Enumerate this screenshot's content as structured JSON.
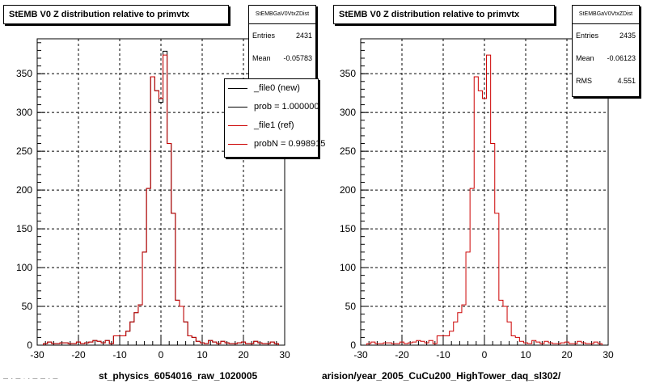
{
  "chart_data": [
    {
      "type": "histogram",
      "title": "StEMB V0 Z distribution relative to primvtx",
      "xlabel": "st_physics_6054016_raw_1020005",
      "xlim": [
        -30,
        30
      ],
      "ylim": [
        0,
        395
      ],
      "xticks": [
        -30,
        -20,
        -10,
        0,
        10,
        20,
        30
      ],
      "yticks": [
        0,
        50,
        100,
        150,
        200,
        250,
        300,
        350
      ],
      "grid": true,
      "stats": {
        "header": "StEMBGaV0VtxZDist",
        "rows": [
          {
            "label": "Entries",
            "value": "2431"
          },
          {
            "label": "Mean",
            "value": "-0.05783"
          }
        ]
      },
      "legend": {
        "placement": "top-right",
        "entries": [
          {
            "label": "_file0 (new)",
            "color": "#000000"
          },
          {
            "label": "prob = 1.000000",
            "color": "#000000"
          },
          {
            "label": "_file1 (ref)",
            "color": "#cc0000"
          },
          {
            "label": "probN = 0.998915",
            "color": "#cc0000"
          }
        ]
      },
      "series": [
        {
          "color": "#000000",
          "bins": [
            -28,
            -27,
            -26,
            -25,
            -24,
            -23,
            -22,
            -21,
            -20,
            -19,
            -18,
            -17,
            -16,
            -15,
            -14,
            -13,
            -12,
            -11,
            -10,
            -9,
            -8,
            -7,
            -6,
            -5,
            -4,
            -3,
            -2,
            -1,
            0,
            1,
            2,
            3,
            4,
            5,
            6,
            7,
            8,
            9,
            10,
            11,
            12,
            13,
            14,
            15,
            16,
            17,
            18,
            19,
            20,
            21,
            22,
            23,
            24,
            25,
            26,
            27,
            28
          ],
          "values": [
            2,
            4,
            2,
            2,
            3,
            3,
            2,
            2,
            4,
            2,
            3,
            4,
            6,
            5,
            3,
            6,
            2,
            12,
            12,
            12,
            18,
            30,
            42,
            52,
            120,
            202,
            346,
            328,
            313,
            379,
            260,
            170,
            58,
            50,
            30,
            12,
            10,
            5,
            3,
            2,
            6,
            4,
            2,
            5,
            3,
            2,
            2,
            3,
            4,
            2,
            2,
            5,
            3,
            2,
            2,
            4,
            2
          ]
        },
        {
          "color": "#cc0000",
          "bins": [
            -28,
            -27,
            -26,
            -25,
            -24,
            -23,
            -22,
            -21,
            -20,
            -19,
            -18,
            -17,
            -16,
            -15,
            -14,
            -13,
            -12,
            -11,
            -10,
            -9,
            -8,
            -7,
            -6,
            -5,
            -4,
            -3,
            -2,
            -1,
            0,
            1,
            2,
            3,
            4,
            5,
            6,
            7,
            8,
            9,
            10,
            11,
            12,
            13,
            14,
            15,
            16,
            17,
            18,
            19,
            20,
            21,
            22,
            23,
            24,
            25,
            26,
            27,
            28
          ],
          "values": [
            2,
            4,
            2,
            2,
            3,
            3,
            2,
            2,
            4,
            2,
            3,
            4,
            6,
            5,
            3,
            6,
            2,
            12,
            12,
            12,
            18,
            30,
            42,
            52,
            120,
            202,
            346,
            328,
            318,
            374,
            260,
            170,
            58,
            50,
            30,
            12,
            10,
            5,
            3,
            2,
            6,
            4,
            2,
            5,
            3,
            2,
            2,
            3,
            4,
            2,
            2,
            5,
            3,
            2,
            2,
            4,
            2
          ]
        }
      ]
    },
    {
      "type": "histogram",
      "title": "StEMB V0 Z distribution relative to primvtx",
      "xlabel": "arision/year_2005_CuCu200_HighTower_daq_sl302/",
      "xlim": [
        -30,
        30
      ],
      "ylim": [
        0,
        395
      ],
      "xticks": [
        -30,
        -20,
        -10,
        0,
        10,
        20,
        30
      ],
      "yticks": [
        0,
        50,
        100,
        150,
        200,
        250,
        300,
        350
      ],
      "grid": true,
      "stats": {
        "header": "StEMBGaV0VtxZDist",
        "rows": [
          {
            "label": "Entries",
            "value": "2435"
          },
          {
            "label": "Mean",
            "value": "-0.06123"
          },
          {
            "label": "RMS",
            "value": "4.551"
          }
        ]
      },
      "series": [
        {
          "color": "#cc0000",
          "bins": [
            -28,
            -27,
            -26,
            -25,
            -24,
            -23,
            -22,
            -21,
            -20,
            -19,
            -18,
            -17,
            -16,
            -15,
            -14,
            -13,
            -12,
            -11,
            -10,
            -9,
            -8,
            -7,
            -6,
            -5,
            -4,
            -3,
            -2,
            -1,
            0,
            1,
            2,
            3,
            4,
            5,
            6,
            7,
            8,
            9,
            10,
            11,
            12,
            13,
            14,
            15,
            16,
            17,
            18,
            19,
            20,
            21,
            22,
            23,
            24,
            25,
            26,
            27,
            28
          ],
          "values": [
            2,
            4,
            2,
            2,
            3,
            3,
            2,
            2,
            4,
            2,
            3,
            4,
            6,
            5,
            3,
            6,
            2,
            12,
            12,
            12,
            18,
            30,
            42,
            52,
            120,
            202,
            346,
            328,
            318,
            374,
            260,
            170,
            58,
            50,
            30,
            12,
            10,
            5,
            3,
            2,
            6,
            4,
            2,
            5,
            3,
            2,
            2,
            3,
            4,
            2,
            2,
            5,
            3,
            2,
            2,
            4,
            2
          ]
        }
      ]
    }
  ],
  "footer_note": "— - —  ·  - — — - —"
}
